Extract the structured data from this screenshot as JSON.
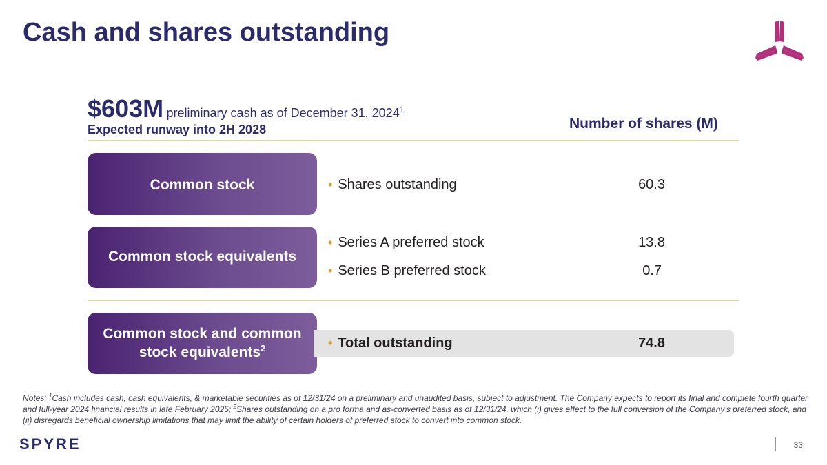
{
  "title": "Cash and shares outstanding",
  "cash": {
    "amount": "$603M",
    "description": "preliminary cash as of December 31, 2024",
    "footnote_ref": "1",
    "runway": "Expected runway into 2H 2028"
  },
  "table": {
    "header": "Number of shares (M)",
    "categories": {
      "common": "Common stock",
      "equivalents": "Common stock equivalents",
      "total": "Common stock and common stock equivalents",
      "total_footnote_ref": "2"
    },
    "rows": {
      "shares_outstanding": {
        "label": "Shares outstanding",
        "value": "60.3"
      },
      "series_a": {
        "label": "Series A preferred stock",
        "value": "13.8"
      },
      "series_b": {
        "label": "Series B preferred stock",
        "value": "0.7"
      },
      "total": {
        "label": "Total outstanding",
        "value": "74.8"
      }
    },
    "bullet": "•"
  },
  "notes": {
    "prefix": "Notes: ",
    "ref1": "1",
    "text1": "Cash includes cash, cash equivalents, & marketable securities as of 12/31/24 on a preliminary and unaudited basis, subject to adjustment. The Company expects to report its final and complete fourth quarter and full-year 2024 financial results in late February 2025; ",
    "ref2": "2",
    "text2": "Shares outstanding on a pro forma and as-converted basis as of 12/31/24, which (i) gives effect to the full conversion of the Company’s preferred stock, and (ii) disregards beneficial ownership limitations that may limit the ability of certain holders of preferred stock to convert into common stock."
  },
  "footer": {
    "brand": "SPYRE",
    "page_number": "33"
  },
  "colors": {
    "title": "#2b2a6b",
    "accent_gold": "#d39a2f",
    "divider": "#e6d5a3",
    "box_start": "#4a2370",
    "box_end": "#7d5d9b",
    "logo": "#b0307c",
    "total_band": "#e3e3e3"
  }
}
